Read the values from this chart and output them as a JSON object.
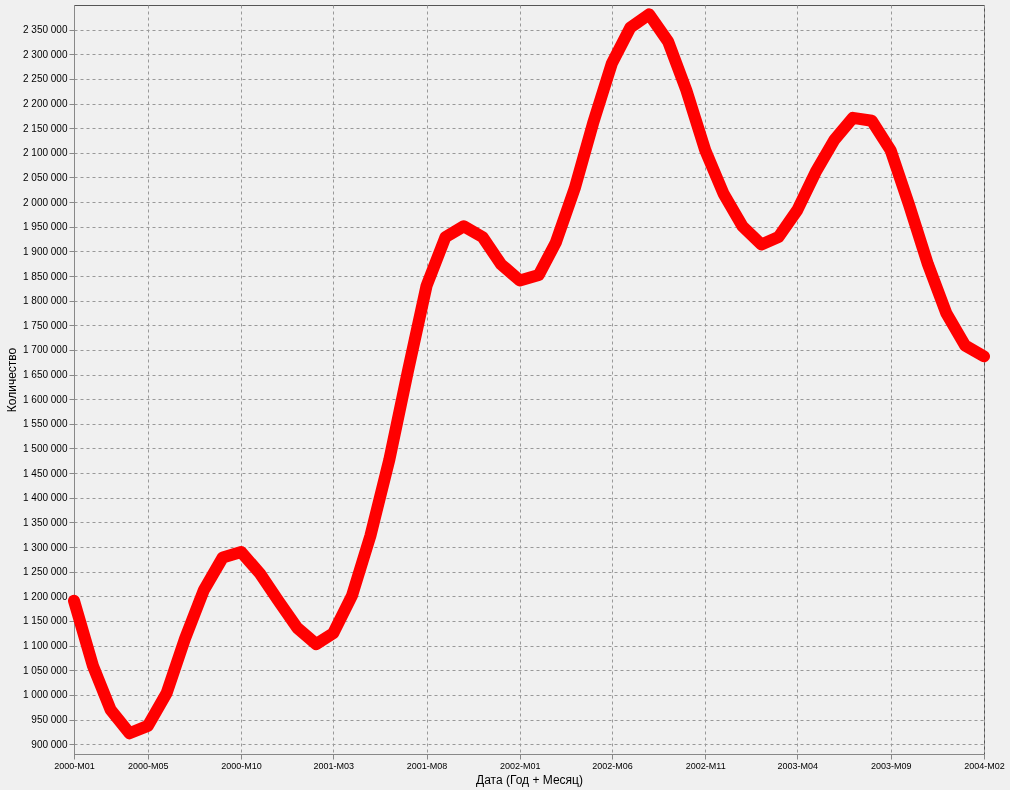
{
  "chart_data": {
    "type": "line",
    "xlabel": "Дата (Год + Месяц)",
    "ylabel": "Количество",
    "x": [
      "2000-01",
      "2000-02",
      "2000-03",
      "2000-04",
      "2000-05",
      "2000-06",
      "2000-07",
      "2000-08",
      "2000-09",
      "2000-10",
      "2000-11",
      "2000-12",
      "2001-01",
      "2001-02",
      "2001-03",
      "2001-04",
      "2001-05",
      "2001-06",
      "2001-07",
      "2001-08",
      "2001-09",
      "2001-10",
      "2001-11",
      "2001-12",
      "2002-01",
      "2002-02",
      "2002-03",
      "2002-04",
      "2002-05",
      "2002-06",
      "2002-07",
      "2002-08",
      "2002-09",
      "2002-10",
      "2002-11",
      "2002-12",
      "2003-01",
      "2003-02",
      "2003-03",
      "2003-04",
      "2003-05",
      "2003-06",
      "2003-07",
      "2003-08",
      "2003-09",
      "2003-10",
      "2003-11",
      "2003-12",
      "2004-01",
      "2004-02"
    ],
    "series": [
      {
        "color": "#ff0000",
        "values": [
          1191000,
          1059000,
          970000,
          922000,
          937000,
          1004000,
          1114000,
          1213000,
          1279000,
          1290000,
          1246000,
          1191000,
          1136000,
          1103000,
          1125000,
          1202000,
          1323000,
          1477000,
          1654000,
          1830000,
          1929000,
          1951000,
          1929000,
          1874000,
          1841000,
          1852000,
          1918000,
          2028000,
          2160000,
          2282000,
          2354000,
          2381000,
          2326000,
          2227000,
          2105000,
          2017000,
          1951000,
          1914000,
          1929000,
          1984000,
          2061000,
          2127000,
          2171000,
          2165000,
          2105000,
          1995000,
          1874000,
          1775000,
          1709000,
          1687000
        ]
      }
    ],
    "xlim": [
      "2000-01",
      "2004-02"
    ],
    "xticks": [
      {
        "value": "2000-01",
        "label": "2000-M01"
      },
      {
        "value": "2000-05",
        "label": "2000-M05"
      },
      {
        "value": "2000-10",
        "label": "2000-M10"
      },
      {
        "value": "2001-03",
        "label": "2001-M03"
      },
      {
        "value": "2001-08",
        "label": "2001-M08"
      },
      {
        "value": "2002-01",
        "label": "2002-M01"
      },
      {
        "value": "2002-06",
        "label": "2002-M06"
      },
      {
        "value": "2002-11",
        "label": "2002-M11"
      },
      {
        "value": "2003-04",
        "label": "2003-M04"
      },
      {
        "value": "2003-09",
        "label": "2003-M09"
      },
      {
        "value": "2004-02",
        "label": "2004-M02"
      }
    ],
    "ylim": [
      880000,
      2400000
    ],
    "yticks": [
      {
        "value": 900000,
        "label": "900 000"
      },
      {
        "value": 950000,
        "label": "950 000"
      },
      {
        "value": 1000000,
        "label": "1 000 000"
      },
      {
        "value": 1050000,
        "label": "1 050 000"
      },
      {
        "value": 1100000,
        "label": "1 100 000"
      },
      {
        "value": 1150000,
        "label": "1 150 000"
      },
      {
        "value": 1200000,
        "label": "1 200 000"
      },
      {
        "value": 1250000,
        "label": "1 250 000"
      },
      {
        "value": 1300000,
        "label": "1 300 000"
      },
      {
        "value": 1350000,
        "label": "1 350 000"
      },
      {
        "value": 1400000,
        "label": "1 400 000"
      },
      {
        "value": 1450000,
        "label": "1 450 000"
      },
      {
        "value": 1500000,
        "label": "1 500 000"
      },
      {
        "value": 1550000,
        "label": "1 550 000"
      },
      {
        "value": 1600000,
        "label": "1 600 000"
      },
      {
        "value": 1650000,
        "label": "1 650 000"
      },
      {
        "value": 1700000,
        "label": "1 700 000"
      },
      {
        "value": 1750000,
        "label": "1 750 000"
      },
      {
        "value": 1800000,
        "label": "1 800 000"
      },
      {
        "value": 1850000,
        "label": "1 850 000"
      },
      {
        "value": 1900000,
        "label": "1 900 000"
      },
      {
        "value": 1950000,
        "label": "1 950 000"
      },
      {
        "value": 2000000,
        "label": "2 000 000"
      },
      {
        "value": 2050000,
        "label": "2 050 000"
      },
      {
        "value": 2100000,
        "label": "2 100 000"
      },
      {
        "value": 2150000,
        "label": "2 150 000"
      },
      {
        "value": 2200000,
        "label": "2 200 000"
      },
      {
        "value": 2250000,
        "label": "2 250 000"
      },
      {
        "value": 2300000,
        "label": "2 300 000"
      },
      {
        "value": 2350000,
        "label": "2 350 000"
      }
    ],
    "grid": true,
    "line_style": "solid"
  }
}
